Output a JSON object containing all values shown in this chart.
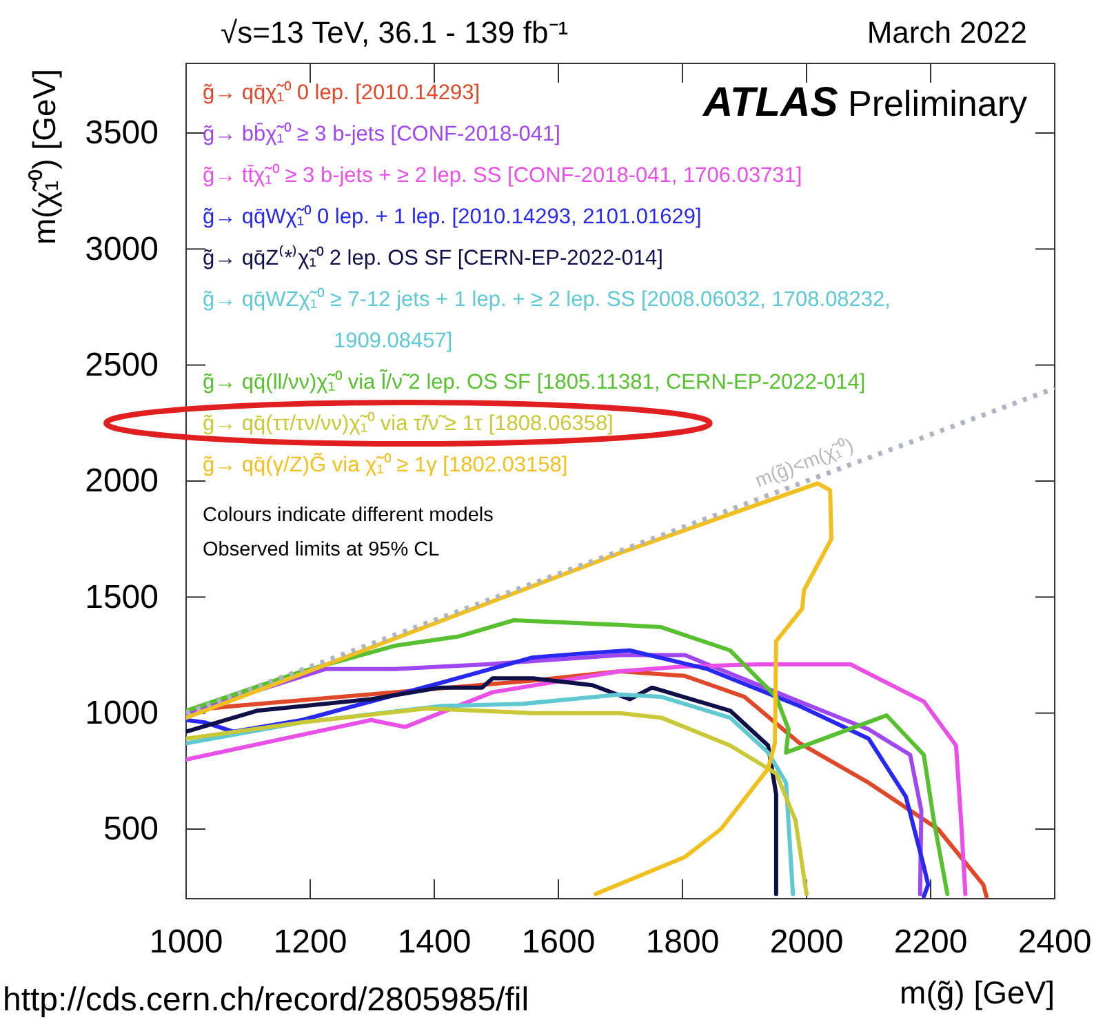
{
  "chart_data": {
    "type": "line",
    "title": "√s=13 TeV, 36.1 - 139 fb⁻¹",
    "subtitle": "March 2022",
    "xlabel": "m(g̃) [GeV]",
    "ylabel": "m(χ̃₁⁰) [GeV]",
    "xlim": [
      1000,
      2400
    ],
    "xticks": [
      1000,
      1200,
      1400,
      1600,
      1800,
      2000,
      2200,
      2400
    ],
    "ylim": [
      200,
      3800
    ],
    "yticks": [
      500,
      1000,
      1500,
      2000,
      2500,
      3000,
      3500
    ],
    "grid": false,
    "legend": "top left",
    "line_style": "solid",
    "series": [
      {
        "name": "g̃→ qq̄χ̃₁⁰ 0 lep. [2010.14293]",
        "color": "#e0482a",
        "x": [
          1000,
          1076,
          1336,
          1559,
          1699,
          1804,
          1900,
          1989,
          2100,
          2212,
          2285,
          2290
        ],
        "values": [
          1010,
          1030,
          1090,
          1140,
          1180,
          1160,
          1070,
          870,
          700,
          500,
          260,
          210
        ]
      },
      {
        "name": "g̃→ bb̄χ̃₁⁰ ≥ 3 b-jets [CONF-2018-041]",
        "color": "#a048f0",
        "x": [
          1000,
          1225,
          1336,
          1483,
          1699,
          1804,
          1951,
          2100,
          2167,
          2185,
          2183
        ],
        "values": [
          1000,
          1190,
          1190,
          1210,
          1250,
          1250,
          1090,
          930,
          820,
          580,
          220
        ]
      },
      {
        "name": "g̃→ tt̄χ̃₁⁰ ≥ 3 b-jets + ≥ 2 lep. SS [CONF-2018-041, 1706.03731]",
        "color": "#e850e8",
        "x": [
          1000,
          1298,
          1353,
          1494,
          1699,
          1800,
          1922,
          2071,
          2189,
          2241,
          2249,
          2256
        ],
        "values": [
          800,
          970,
          940,
          1090,
          1180,
          1200,
          1210,
          1210,
          1050,
          860,
          540,
          220
        ]
      },
      {
        "name": "g̃→ qq̄Wχ̃₁⁰ 0 lep. + 1 lep. [2010.14293, 2101.01629]",
        "color": "#2828f0",
        "x": [
          1000,
          1030,
          1076,
          1187,
          1298,
          1410,
          1559,
          1655,
          1715,
          1840,
          1989,
          2100,
          2160,
          2189,
          2196,
          2189
        ],
        "values": [
          970,
          960,
          920,
          970,
          1050,
          1130,
          1240,
          1260,
          1270,
          1190,
          1030,
          890,
          640,
          340,
          260,
          210
        ]
      },
      {
        "name": "g̃→ qq̄Z⁽*⁾χ̃₁⁰ 2 lep. OS SF [CERN-EP-2022-014]",
        "color": "#101048",
        "x": [
          1000,
          1114,
          1298,
          1410,
          1477,
          1494,
          1559,
          1655,
          1715,
          1751,
          1877,
          1938,
          1951,
          1951
        ],
        "values": [
          920,
          1010,
          1060,
          1110,
          1110,
          1150,
          1150,
          1120,
          1060,
          1110,
          1010,
          860,
          650,
          220
        ]
      },
      {
        "name": "g̃→ qq̄WZχ̃₁⁰ ≥ 7-12 jets + 1 lep. + ≥ 2 lep. SS [2008.06032, 1708.08232, 1909.08457]",
        "color": "#60c8d0",
        "x": [
          1000,
          1187,
          1410,
          1543,
          1699,
          1766,
          1877,
          1938,
          1967,
          1978
        ],
        "values": [
          870,
          960,
          1030,
          1040,
          1080,
          1070,
          980,
          830,
          700,
          220
        ]
      },
      {
        "name": "g̃→ qq̄(ll/νν)χ̃₁⁰ via l̃/ν̃ 2 lep. OS SF [1805.11381, CERN-EP-2022-014]",
        "color": "#58c030",
        "x": [
          1000,
          1187,
          1336,
          1439,
          1528,
          1699,
          1766,
          1877,
          1951,
          1971,
          1967,
          2129,
          2189,
          2205,
          2227
        ],
        "values": [
          1010,
          1180,
          1290,
          1330,
          1400,
          1380,
          1370,
          1270,
          1070,
          930,
          830,
          990,
          820,
          540,
          220
        ]
      },
      {
        "name": "g̃→ qq̄(ττ/τν/νν)χ̃₁⁰ via τ̃/ν̃ ≥ 1τ [1808.06358]",
        "color": "#c8c838",
        "x": [
          1000,
          1187,
          1388,
          1559,
          1699,
          1766,
          1877,
          1951,
          1982,
          2000
        ],
        "values": [
          890,
          960,
          1020,
          1000,
          1000,
          980,
          860,
          740,
          540,
          220
        ]
      },
      {
        "name": "g̃→ qq̄(γ/Z)G̃ via χ̃₁⁰ ≥ 1γ [1802.03158]",
        "color": "#f0c020",
        "x": [
          1000,
          1699,
          2018,
          2038,
          2040,
          1996,
          1993,
          1951,
          1949,
          1938,
          1862,
          1804,
          1660
        ],
        "values": [
          980,
          1690,
          1990,
          1960,
          1750,
          1530,
          1450,
          1310,
          870,
          760,
          500,
          380,
          220
        ]
      },
      {
        "color": "#b0b4c0",
        "line_style": "dotted",
        "x": [
          1000,
          2400
        ],
        "values": [
          1000,
          2400
        ]
      }
    ],
    "annotations": [
      "ATLAS Preliminary",
      "Colours indicate different models",
      "Observed limits at 95% CL",
      "m(g̃)<m(χ̃₁⁰)",
      "http://cds.cern.ch/record/2805985/fil"
    ]
  }
}
